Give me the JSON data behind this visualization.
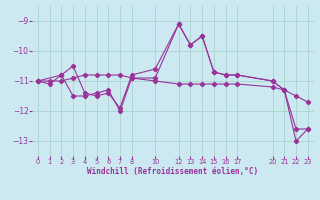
{
  "xlabel": "Windchill (Refroidissement éolien,°C)",
  "bg_color": "#cce8f0",
  "line_color": "#993399",
  "grid_color": "#aad4cc",
  "xticks": [
    0,
    1,
    2,
    3,
    4,
    5,
    6,
    7,
    8,
    10,
    12,
    13,
    14,
    15,
    16,
    17,
    20,
    21,
    22,
    23
  ],
  "ylim": [
    -13.5,
    -8.5
  ],
  "yticks": [
    -13,
    -12,
    -11,
    -10,
    -9
  ],
  "line1_x": [
    0,
    1,
    2,
    3,
    4,
    5,
    6,
    7,
    8,
    10,
    12,
    13,
    14,
    15,
    16,
    17,
    20,
    21,
    22,
    23
  ],
  "line1_y": [
    -11.0,
    -11.1,
    -10.8,
    -10.5,
    -11.4,
    -11.5,
    -11.4,
    -11.9,
    -10.8,
    -10.6,
    -9.1,
    -9.8,
    -9.5,
    -10.7,
    -10.8,
    -10.8,
    -11.0,
    -11.3,
    -12.6,
    -12.6
  ],
  "line2_x": [
    0,
    1,
    2,
    3,
    4,
    5,
    6,
    7,
    8,
    10,
    12,
    13,
    14,
    15,
    16,
    17,
    20,
    21,
    22,
    23
  ],
  "line2_y": [
    -11.0,
    -11.0,
    -11.0,
    -10.9,
    -10.8,
    -10.8,
    -10.8,
    -10.8,
    -10.9,
    -11.0,
    -11.1,
    -11.1,
    -11.1,
    -11.1,
    -11.1,
    -11.1,
    -11.2,
    -11.3,
    -11.5,
    -11.7
  ],
  "line3_x": [
    0,
    2,
    3,
    4,
    5,
    6,
    7,
    8,
    10,
    12,
    13,
    14,
    15,
    16,
    17,
    20,
    21,
    22,
    23
  ],
  "line3_y": [
    -11.0,
    -10.8,
    -11.5,
    -11.5,
    -11.4,
    -11.3,
    -12.0,
    -10.9,
    -10.9,
    -9.1,
    -9.8,
    -9.5,
    -10.7,
    -10.8,
    -10.8,
    -11.0,
    -11.3,
    -13.0,
    -12.6
  ]
}
